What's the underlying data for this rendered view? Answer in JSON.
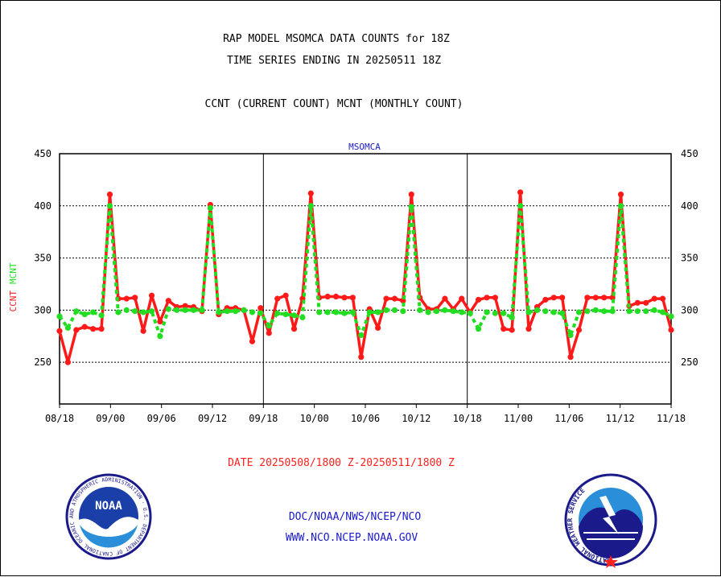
{
  "header": {
    "line1": "RAP MODEL MSOMCA DATA COUNTS for 18Z",
    "line2": "TIME SERIES ENDING IN 20250511 18Z",
    "line3": "CCNT (CURRENT COUNT) MCNT (MONTHLY COUNT)"
  },
  "footer": {
    "date_range": "DATE 20250508/1800 Z-20250511/1800 Z",
    "org": "DOC/NOAA/NWS/NCEP/NCO",
    "url": "WWW.NCO.NCEP.NOAA.GOV"
  },
  "logos": {
    "noaa_text": "NOAA",
    "noaa_ring": "NATIONAL OCEANIC AND ATMOSPHERIC ADMINISTRATION · U.S. DEPARTMENT OF COMMERCE ·",
    "nws_ring": "NATIONAL WEATHER SERVICE"
  },
  "colors": {
    "ccnt": "#ff1a1a",
    "mcnt": "#22dd22",
    "text_red": "#ff2020",
    "text_blue": "#1a1acc",
    "axis": "#000000"
  },
  "chart_data": {
    "type": "line",
    "title": "MSOMCA",
    "ylim": [
      210,
      450
    ],
    "yticks": [
      250,
      300,
      350,
      400,
      450
    ],
    "ylabel_parts": [
      {
        "text": "CCNT",
        "color": "#ff1a1a"
      },
      {
        "text": "MCNT",
        "color": "#22dd22"
      }
    ],
    "xticks": [
      "08/18",
      "09/00",
      "09/06",
      "09/12",
      "09/18",
      "10/00",
      "10/06",
      "10/12",
      "10/18",
      "11/00",
      "11/06",
      "11/12",
      "11/18"
    ],
    "xlabel": "",
    "grid": "horizontal dotted at 250, 300, 350, 400; vertical solid at day boundaries",
    "series": [
      {
        "name": "CCNT",
        "color": "#ff1a1a",
        "values": [
          280,
          250,
          281,
          284,
          282,
          282,
          411,
          311,
          311,
          312,
          280,
          314,
          289,
          309,
          303,
          304,
          303,
          299,
          401,
          296,
          302,
          302,
          300,
          270,
          302,
          278,
          311,
          314,
          282,
          311,
          412,
          312,
          313,
          313,
          312,
          312,
          255,
          301,
          283,
          311,
          311,
          309,
          411,
          312,
          301,
          301,
          311,
          301,
          311,
          298,
          310,
          312,
          312,
          282,
          281,
          413,
          282,
          303,
          310,
          312,
          312,
          255,
          281,
          312,
          312,
          312,
          312,
          411,
          304,
          307,
          307,
          311,
          311,
          281
        ]
      },
      {
        "name": "MCNT",
        "color": "#22dd22",
        "values": [
          294,
          283,
          299,
          296,
          298,
          295,
          400,
          298,
          300,
          299,
          298,
          299,
          275,
          301,
          300,
          300,
          300,
          300,
          398,
          298,
          299,
          299,
          300,
          298,
          297,
          285,
          297,
          296,
          295,
          293,
          400,
          298,
          298,
          298,
          297,
          298,
          276,
          298,
          298,
          300,
          300,
          299,
          399,
          300,
          298,
          299,
          300,
          299,
          298,
          297,
          282,
          298,
          297,
          297,
          293,
          400,
          298,
          300,
          299,
          298,
          297,
          276,
          298,
          299,
          300,
          299,
          299,
          400,
          299,
          299,
          299,
          300,
          298,
          294
        ]
      }
    ]
  }
}
